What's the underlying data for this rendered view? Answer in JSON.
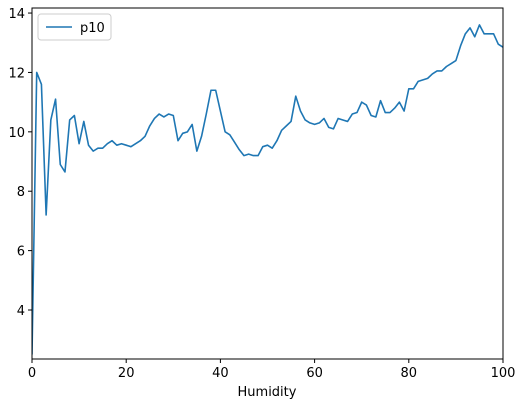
{
  "chart_data": {
    "type": "line",
    "x_label": "Humidity",
    "x": [
      0,
      1,
      2,
      3,
      4,
      5,
      6,
      7,
      8,
      9,
      10,
      11,
      12,
      13,
      14,
      15,
      16,
      17,
      18,
      19,
      20,
      21,
      22,
      23,
      24,
      25,
      26,
      27,
      28,
      29,
      30,
      31,
      32,
      33,
      34,
      35,
      36,
      37,
      38,
      39,
      40,
      41,
      42,
      43,
      44,
      45,
      46,
      47,
      48,
      49,
      50,
      51,
      52,
      53,
      54,
      55,
      56,
      57,
      58,
      59,
      60,
      61,
      62,
      63,
      64,
      65,
      66,
      67,
      68,
      69,
      70,
      71,
      72,
      73,
      74,
      75,
      76,
      77,
      78,
      79,
      80,
      81,
      82,
      83,
      84,
      85,
      86,
      87,
      88,
      89,
      90,
      91,
      92,
      93,
      94,
      95,
      96,
      97,
      98,
      99,
      100
    ],
    "series": [
      {
        "name": "p10",
        "color": "#1f77b4",
        "values": [
          2.5,
          12.0,
          11.6,
          7.2,
          10.4,
          11.1,
          8.9,
          8.65,
          10.4,
          10.55,
          9.6,
          10.35,
          9.55,
          9.35,
          9.45,
          9.45,
          9.6,
          9.7,
          9.55,
          9.6,
          9.55,
          9.5,
          9.6,
          9.7,
          9.85,
          10.2,
          10.45,
          10.6,
          10.5,
          10.6,
          10.55,
          9.7,
          9.95,
          10.0,
          10.25,
          9.35,
          9.85,
          10.6,
          11.4,
          11.4,
          10.7,
          10.0,
          9.9,
          9.65,
          9.4,
          9.2,
          9.25,
          9.2,
          9.2,
          9.5,
          9.55,
          9.45,
          9.7,
          10.05,
          10.2,
          10.35,
          11.2,
          10.7,
          10.4,
          10.3,
          10.25,
          10.3,
          10.45,
          10.15,
          10.1,
          10.45,
          10.4,
          10.35,
          10.6,
          10.65,
          11.0,
          10.9,
          10.55,
          10.5,
          11.05,
          10.65,
          10.65,
          10.8,
          11.0,
          10.7,
          11.45,
          11.45,
          11.7,
          11.75,
          11.8,
          11.95,
          12.05,
          12.05,
          12.2,
          12.3,
          12.4,
          12.9,
          13.3,
          13.5,
          13.2,
          13.6,
          13.3,
          13.3,
          13.3,
          12.95,
          12.85
        ]
      }
    ],
    "xlim": [
      0,
      100
    ],
    "xticks": [
      0,
      20,
      40,
      60,
      80,
      100
    ],
    "ylim": [
      2.35,
      14.17
    ],
    "yticks": [
      4,
      6,
      8,
      10,
      12,
      14
    ],
    "legend": "upper left",
    "grid": false
  }
}
